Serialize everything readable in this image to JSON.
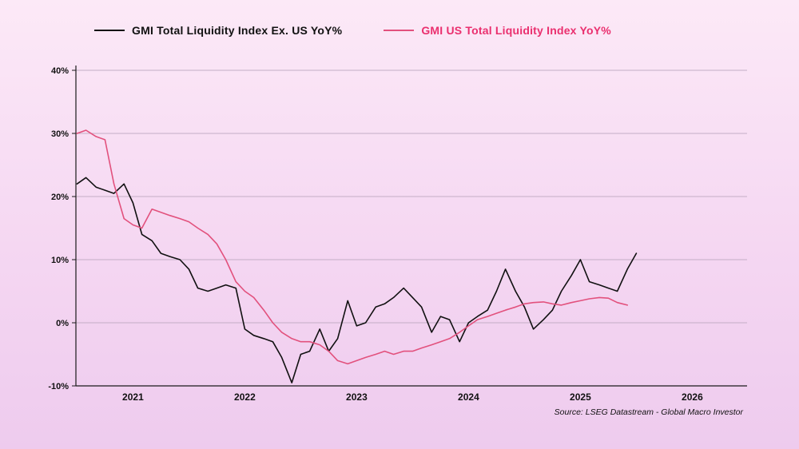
{
  "source_note": "Source: LSEG Datastream - Global Macro Investor",
  "colors": {
    "background_top": "#fce9f7",
    "background_mid": "#f5d7f2",
    "background_bottom": "#eecbee",
    "grid": "#c3aec6",
    "axis": "#1a1a1a",
    "ex_us_line": "#111111",
    "us_line": "#e2517d",
    "us_label": "#ea2f6e"
  },
  "chart_data": {
    "type": "line",
    "title": "",
    "xlabel": "",
    "ylabel": "",
    "grid": true,
    "legend_position": "top",
    "x_axis": {
      "min": 2020.49,
      "max": 2026.49,
      "ticks": [
        2021,
        2022,
        2023,
        2024,
        2025,
        2026
      ]
    },
    "y_axis": {
      "min": -10,
      "max": 40,
      "ticks": [
        -10,
        0,
        10,
        20,
        30,
        40
      ],
      "tick_suffix": "%"
    },
    "series": [
      {
        "name": "GMI Total Liquidity Index Ex. US YoY%",
        "color": "#111111",
        "label_color": "#111111",
        "x": [
          2020.5,
          2020.58,
          2020.67,
          2020.75,
          2020.83,
          2020.92,
          2021.0,
          2021.08,
          2021.17,
          2021.25,
          2021.33,
          2021.42,
          2021.5,
          2021.58,
          2021.67,
          2021.75,
          2021.83,
          2021.92,
          2022.0,
          2022.08,
          2022.17,
          2022.25,
          2022.33,
          2022.42,
          2022.5,
          2022.58,
          2022.67,
          2022.75,
          2022.83,
          2022.92,
          2023.0,
          2023.08,
          2023.17,
          2023.25,
          2023.33,
          2023.42,
          2023.5,
          2023.58,
          2023.67,
          2023.75,
          2023.83,
          2023.92,
          2024.0,
          2024.08,
          2024.17,
          2024.25,
          2024.33,
          2024.42,
          2024.5,
          2024.58,
          2024.67,
          2024.75,
          2024.83,
          2024.92,
          2025.0,
          2025.08,
          2025.17,
          2025.25,
          2025.33,
          2025.42,
          2025.5
        ],
        "values": [
          22,
          23,
          21.5,
          21,
          20.5,
          22,
          19,
          14,
          13,
          11,
          10.5,
          10,
          8.5,
          5.5,
          5,
          5.5,
          6,
          5.5,
          -1,
          -2,
          -2.5,
          -3,
          -5.5,
          -9.5,
          -5,
          -4.5,
          -1,
          -4.5,
          -2.5,
          3.5,
          -0.5,
          0,
          2.5,
          3,
          4,
          5.5,
          4,
          2.5,
          -1.5,
          1,
          0.5,
          -3,
          0,
          1,
          2,
          5,
          8.5,
          5,
          2.5,
          -1,
          0.5,
          2,
          5,
          7.5,
          10,
          6.5,
          6,
          5.5,
          5,
          8.5,
          11
        ]
      },
      {
        "name": "GMI US Total Liquidity Index YoY%",
        "color": "#e2517d",
        "label_color": "#ea2f6e",
        "x": [
          2020.5,
          2020.58,
          2020.67,
          2020.75,
          2020.83,
          2020.92,
          2021.0,
          2021.08,
          2021.17,
          2021.25,
          2021.33,
          2021.42,
          2021.5,
          2021.58,
          2021.67,
          2021.75,
          2021.83,
          2021.92,
          2022.0,
          2022.08,
          2022.17,
          2022.25,
          2022.33,
          2022.42,
          2022.5,
          2022.58,
          2022.67,
          2022.75,
          2022.83,
          2022.92,
          2023.0,
          2023.08,
          2023.17,
          2023.25,
          2023.33,
          2023.42,
          2023.5,
          2023.58,
          2023.67,
          2023.75,
          2023.83,
          2023.92,
          2024.0,
          2024.08,
          2024.17,
          2024.25,
          2024.33,
          2024.42,
          2024.5,
          2024.58,
          2024.67,
          2024.75,
          2024.83,
          2024.92,
          2025.0,
          2025.08,
          2025.17,
          2025.25,
          2025.33,
          2025.42
        ],
        "values": [
          30,
          30.5,
          29.5,
          29,
          22,
          16.5,
          15.5,
          15,
          18,
          17.5,
          17,
          16.5,
          16,
          15,
          14,
          12.5,
          10,
          6.5,
          5,
          4,
          2,
          0,
          -1.5,
          -2.5,
          -3,
          -3,
          -3.5,
          -4.5,
          -6,
          -6.5,
          -6,
          -5.5,
          -5,
          -4.5,
          -5,
          -4.5,
          -4.5,
          -4,
          -3.5,
          -3,
          -2.5,
          -1.5,
          -0.5,
          0.5,
          1,
          1.5,
          2,
          2.5,
          3,
          3.2,
          3.3,
          3,
          2.8,
          3.2,
          3.5,
          3.8,
          4,
          3.9,
          3.2,
          2.8
        ]
      }
    ]
  }
}
